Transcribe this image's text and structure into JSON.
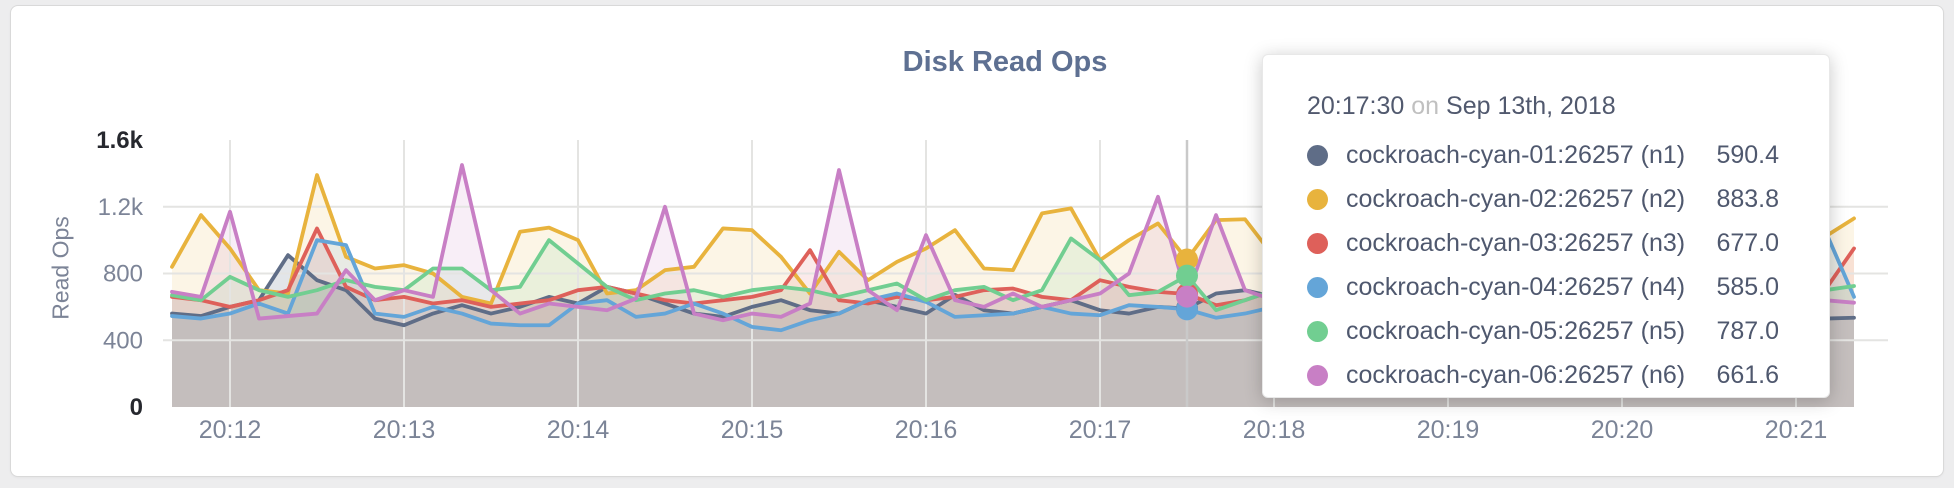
{
  "page": {
    "background_color": "#ededee",
    "card_background": "#ffffff"
  },
  "header": {
    "title": "Disk Read Ops"
  },
  "tooltip": {
    "time": "20:17:30",
    "conjunction": "on",
    "date": "Sep 13th, 2018"
  },
  "chart_data": {
    "type": "area",
    "title": "Disk Read Ops",
    "ylabel": "Read Ops",
    "ylim": [
      0,
      1600
    ],
    "grid": {
      "h_values": [
        400,
        800,
        1200
      ],
      "v_at_ticks": true,
      "color": "#e4e4e2"
    },
    "hover": {
      "index": 35,
      "time_label": "20:17:30",
      "line_color": "#c9c9c9"
    },
    "x_start_time": "20:11:40",
    "x_interval_seconds": 10,
    "x_tick_start_index": 2,
    "x_tick_step": 6,
    "x_ticks": [
      "20:12",
      "20:13",
      "20:14",
      "20:15",
      "20:16",
      "20:17",
      "20:18",
      "20:19",
      "20:20",
      "20:21"
    ],
    "y_ticks": [
      {
        "label": "0",
        "value": 0,
        "strong": true
      },
      {
        "label": "400",
        "value": 400,
        "strong": false
      },
      {
        "label": "800",
        "value": 800,
        "strong": false
      },
      {
        "label": "1.2k",
        "value": 1200,
        "strong": false
      },
      {
        "label": "1.6k",
        "value": 1600,
        "strong": true
      }
    ],
    "series": [
      {
        "label": "cockroach-cyan-01:26257 (n1)",
        "color": "#5f6d87",
        "fill_opacity": 0.18,
        "value_text": "590.4",
        "values": [
          560,
          545,
          600,
          640,
          910,
          760,
          700,
          530,
          490,
          560,
          610,
          560,
          600,
          660,
          620,
          720,
          680,
          620,
          560,
          540,
          600,
          640,
          580,
          560,
          640,
          600,
          560,
          672,
          580,
          560,
          600,
          640,
          580,
          560,
          600,
          590.4,
          680,
          700,
          660,
          620,
          580,
          620,
          580,
          560,
          600,
          640,
          600,
          560,
          580,
          620,
          560,
          600,
          580,
          560,
          540,
          520,
          520,
          530,
          535
        ]
      },
      {
        "label": "cockroach-cyan-02:26257 (n2)",
        "color": "#e8b33d",
        "fill_opacity": 0.13,
        "value_text": "883.8",
        "values": [
          840,
          1150,
          950,
          700,
          680,
          1390,
          900,
          830,
          850,
          800,
          660,
          620,
          1050,
          1075,
          1000,
          680,
          700,
          820,
          840,
          1070,
          1060,
          900,
          680,
          930,
          760,
          870,
          950,
          1060,
          830,
          820,
          1160,
          1190,
          880,
          1000,
          1100,
          883.8,
          1120,
          1125,
          900,
          800,
          850,
          950,
          800,
          750,
          820,
          900,
          800,
          760,
          850,
          800,
          900,
          850,
          800,
          780,
          850,
          900,
          820,
          1020,
          1130
        ]
      },
      {
        "label": "cockroach-cyan-03:26257 (n3)",
        "color": "#de605a",
        "fill_opacity": 0.13,
        "value_text": "677.0",
        "values": [
          660,
          640,
          600,
          640,
          700,
          1070,
          720,
          640,
          660,
          620,
          640,
          600,
          620,
          640,
          700,
          720,
          680,
          640,
          620,
          640,
          660,
          700,
          940,
          640,
          620,
          660,
          640,
          660,
          700,
          710,
          660,
          640,
          760,
          720,
          690,
          677,
          610,
          640,
          700,
          660,
          640,
          700,
          660,
          620,
          660,
          700,
          660,
          640,
          660,
          700,
          660,
          640,
          660,
          640,
          660,
          680,
          660,
          700,
          950
        ]
      },
      {
        "label": "cockroach-cyan-04:26257 (n4)",
        "color": "#64a5d8",
        "fill_opacity": 0.13,
        "value_text": "585.0",
        "values": [
          545,
          530,
          560,
          620,
          560,
          1000,
          970,
          560,
          540,
          600,
          560,
          500,
          490,
          490,
          620,
          640,
          540,
          560,
          620,
          560,
          480,
          460,
          520,
          560,
          640,
          680,
          630,
          540,
          550,
          560,
          600,
          560,
          550,
          610,
          600,
          585,
          535,
          560,
          600,
          560,
          540,
          580,
          560,
          540,
          580,
          560,
          540,
          560,
          580,
          560,
          540,
          560,
          580,
          560,
          540,
          620,
          700,
          1060,
          660
        ]
      },
      {
        "label": "cockroach-cyan-05:26257 (n5)",
        "color": "#71ce91",
        "fill_opacity": 0.13,
        "value_text": "787.0",
        "values": [
          670,
          640,
          780,
          700,
          660,
          700,
          760,
          720,
          700,
          830,
          830,
          700,
          720,
          1000,
          860,
          720,
          640,
          680,
          700,
          660,
          700,
          720,
          700,
          660,
          700,
          740,
          640,
          700,
          720,
          640,
          700,
          1010,
          880,
          670,
          690,
          787,
          580,
          640,
          700,
          660,
          700,
          680,
          660,
          700,
          680,
          660,
          700,
          680,
          660,
          700,
          680,
          660,
          700,
          680,
          660,
          680,
          700,
          700,
          725
        ]
      },
      {
        "label": "cockroach-cyan-06:26257 (n6)",
        "color": "#c87fc5",
        "fill_opacity": 0.13,
        "value_text": "661.6",
        "values": [
          690,
          660,
          1170,
          530,
          545,
          560,
          820,
          640,
          700,
          660,
          1450,
          700,
          560,
          620,
          600,
          580,
          650,
          1200,
          560,
          520,
          560,
          540,
          620,
          1420,
          700,
          580,
          1030,
          640,
          600,
          680,
          600,
          640,
          680,
          800,
          1260,
          661.6,
          1150,
          700,
          640,
          700,
          660,
          620,
          680,
          640,
          700,
          660,
          620,
          680,
          640,
          600,
          660,
          640,
          620,
          660,
          640,
          620,
          640,
          640,
          625
        ]
      }
    ]
  }
}
